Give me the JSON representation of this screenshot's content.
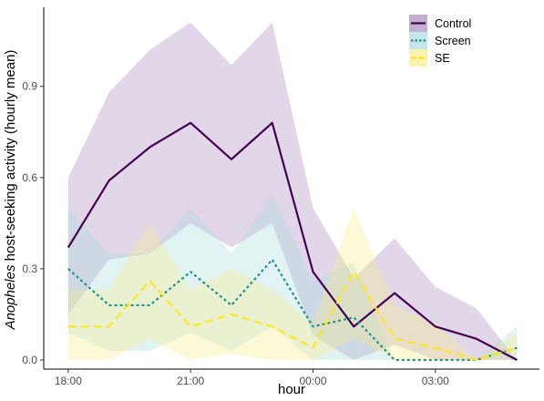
{
  "chart_data": {
    "type": "line",
    "xlabel": "hour",
    "ylabel_italic": "Anopheles",
    "ylabel_rest": " host-seeking activity (hourly mean)",
    "x_hours": [
      18,
      19,
      20,
      21,
      22,
      23,
      24,
      25,
      26,
      27,
      28,
      29
    ],
    "xlim": [
      17.4,
      29.55
    ],
    "ylim": [
      -0.03,
      1.16
    ],
    "xticks": [
      {
        "value": 18,
        "label": "18:00"
      },
      {
        "value": 21,
        "label": "21:00"
      },
      {
        "value": 24,
        "label": "00:00"
      },
      {
        "value": 27,
        "label": "03:00"
      }
    ],
    "yticks": [
      {
        "value": 0.0,
        "label": "0.0"
      },
      {
        "value": 0.3,
        "label": "0.3"
      },
      {
        "value": 0.6,
        "label": "0.6"
      },
      {
        "value": 0.9,
        "label": "0.9"
      }
    ],
    "grid": false,
    "legend_position": "top-right",
    "series": [
      {
        "name": "Control",
        "color": "#440154",
        "dash": "solid",
        "values": [
          0.37,
          0.59,
          0.7,
          0.78,
          0.66,
          0.78,
          0.29,
          0.11,
          0.22,
          0.11,
          0.07,
          0.0
        ],
        "upper": [
          0.6,
          0.88,
          1.02,
          1.11,
          0.97,
          1.11,
          0.5,
          0.27,
          0.4,
          0.24,
          0.17,
          0.0
        ],
        "lower": [
          0.15,
          0.33,
          0.35,
          0.45,
          0.37,
          0.45,
          0.08,
          0.0,
          0.05,
          0.0,
          0.0,
          0.0
        ],
        "band_color": "#8e65a8",
        "band_opacity": 0.26
      },
      {
        "name": "Screen",
        "color": "#21918c",
        "dash": "dotted",
        "values": [
          0.3,
          0.18,
          0.18,
          0.29,
          0.18,
          0.33,
          0.11,
          0.14,
          0.0,
          0.0,
          0.0,
          0.04
        ],
        "upper": [
          0.5,
          0.35,
          0.35,
          0.5,
          0.35,
          0.55,
          0.26,
          0.32,
          0.0,
          0.0,
          0.0,
          0.11
        ],
        "lower": [
          0.09,
          0.03,
          0.03,
          0.09,
          0.03,
          0.11,
          0.0,
          0.0,
          0.0,
          0.0,
          0.0,
          0.0
        ],
        "band_color": "#a4d9dc",
        "band_opacity": 0.32
      },
      {
        "name": "SE",
        "color": "#fde725",
        "dash": "dashed",
        "values": [
          0.11,
          0.11,
          0.26,
          0.11,
          0.15,
          0.11,
          0.04,
          0.29,
          0.07,
          0.04,
          0.0,
          0.04
        ],
        "upper": [
          0.23,
          0.23,
          0.45,
          0.23,
          0.3,
          0.23,
          0.12,
          0.5,
          0.18,
          0.12,
          0.0,
          0.09
        ],
        "lower": [
          0.0,
          0.0,
          0.07,
          0.0,
          0.02,
          0.0,
          0.0,
          0.07,
          0.0,
          0.0,
          0.0,
          0.0
        ],
        "band_color": "#f7ec8a",
        "band_opacity": 0.34
      }
    ]
  }
}
